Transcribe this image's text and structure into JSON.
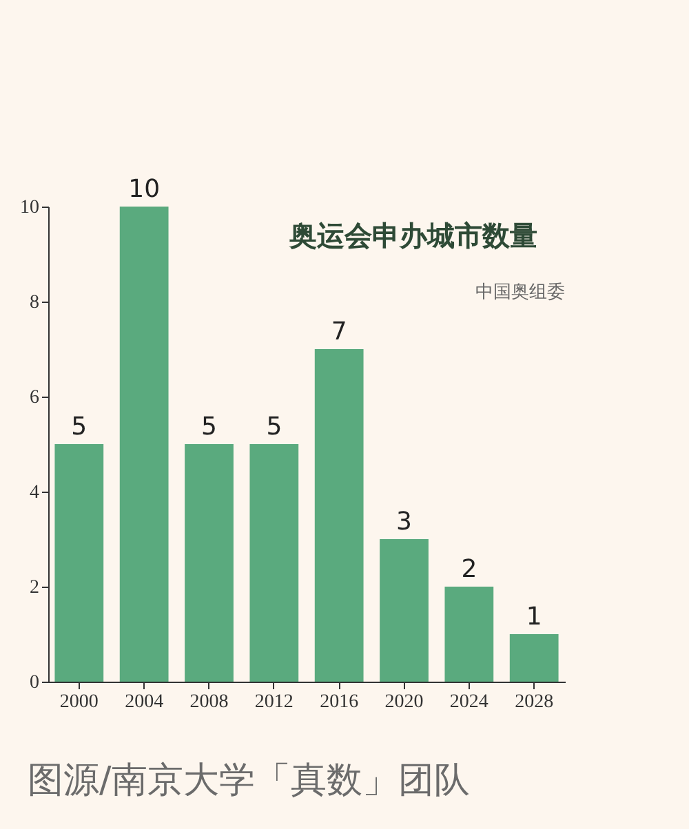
{
  "chart_data": {
    "type": "bar",
    "title": "奥运会申办城市数量",
    "subtitle": "中国奥组委",
    "categories": [
      "2000",
      "2004",
      "2008",
      "2012",
      "2016",
      "2020",
      "2024",
      "2028"
    ],
    "values": [
      5,
      10,
      5,
      5,
      7,
      3,
      2,
      1
    ],
    "color": "#5aaa7e",
    "ylim": [
      0,
      10
    ],
    "yticks": [
      0,
      2,
      4,
      6,
      8,
      10
    ],
    "grid": false,
    "data_labels": true,
    "annotations": [
      "图源/南京大学「真数」团队"
    ]
  }
}
